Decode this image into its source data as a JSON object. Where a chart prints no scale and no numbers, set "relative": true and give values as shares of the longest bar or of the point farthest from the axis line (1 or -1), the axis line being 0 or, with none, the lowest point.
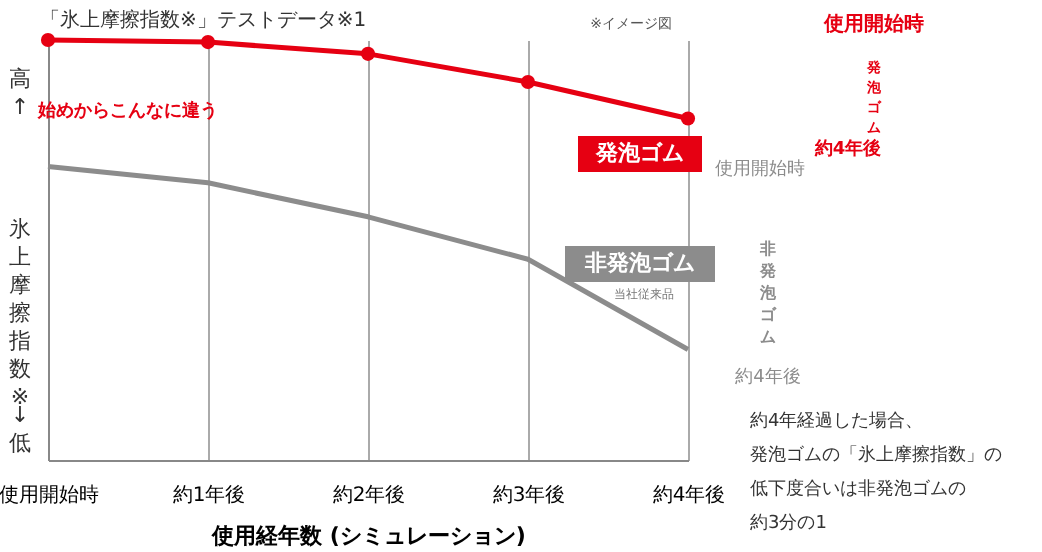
{
  "chart_data": {
    "type": "line",
    "title": "「氷上摩擦指数※」テストデータ※1",
    "xlabel": "使用経年数 (シミュレーション)",
    "ylabel": "氷上摩擦指数※",
    "categories": [
      "使用開始時",
      "約1年後",
      "約2年後",
      "約3年後",
      "約4年後"
    ],
    "relative": true,
    "grid": "x",
    "legend": "right",
    "tick_labels": "x",
    "series": [
      {
        "name": "発泡ゴム",
        "color": "#e60012",
        "marker": "circle",
        "values": [
          1,
          0.995,
          0.967,
          0.9,
          0.813
        ]
      },
      {
        "name": "非発泡ゴム",
        "color": "#8c8c8c",
        "marker": "none",
        "values": [
          0.699,
          0.66,
          0.579,
          0.478,
          0.263
        ]
      }
    ],
    "annotations": [
      "※イメージ図",
      "高↑",
      "↓低",
      "始めからこんなに違う",
      "当社従来品",
      "使用開始時",
      "発泡ゴム",
      "約4年後",
      "使用開始時",
      "非発泡ゴム",
      "約4年後",
      "約4年経過した場合、",
      "発泡ゴムの「氷上摩擦指数」の",
      "低下度合いは非発泡ゴムの",
      "約3分の1"
    ]
  }
}
